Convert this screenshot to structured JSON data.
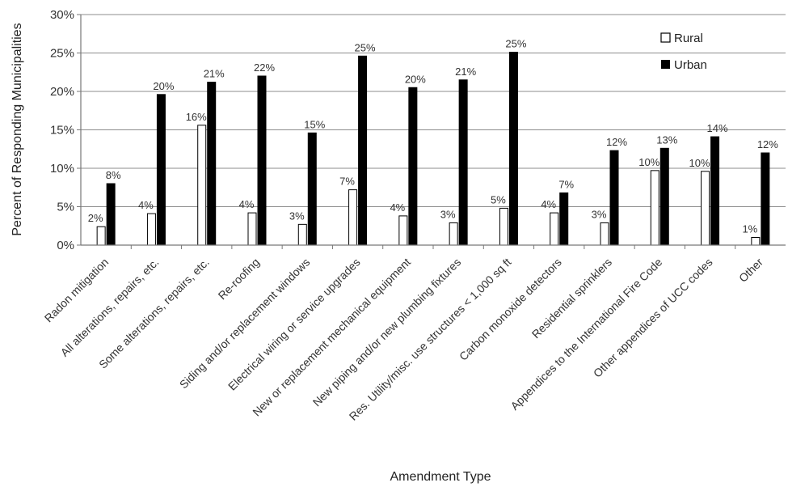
{
  "chart_data": {
    "type": "bar",
    "title": "",
    "xlabel": "Amendment Type",
    "ylabel": "Percent of Responding Municipalities",
    "ylim": [
      0,
      30
    ],
    "y_ticks": [
      "0%",
      "5%",
      "10%",
      "15%",
      "20%",
      "25%",
      "30%"
    ],
    "grid": true,
    "legend_position": "top-right",
    "categories": [
      "Radon mitigation",
      "All alterations, repairs, etc.",
      "Some alterations, repairs, etc.",
      "Re-roofing",
      "Siding and/or replacement windows",
      "Electrical wiring or service upgrades",
      "New or replacement mechanical equipment",
      "New piping and/or new plumbing fixtures",
      "Res. Utility/misc. use structures < 1,000 sq ft",
      "Carbon monoxide detectors",
      "Residential sprinklers",
      "Appendices to the International Fire Code",
      "Other appendices of UCC codes",
      "Other"
    ],
    "series": [
      {
        "name": "Rural",
        "color": "#ffffff",
        "values": [
          2.4,
          4.1,
          15.6,
          4.2,
          2.7,
          7.2,
          3.8,
          2.9,
          4.8,
          4.2,
          2.9,
          9.7,
          9.6,
          1.0
        ],
        "labels": [
          "2%",
          "4%",
          "16%",
          "4%",
          "3%",
          "7%",
          "4%",
          "3%",
          "5%",
          "4%",
          "3%",
          "10%",
          "10%",
          "1%"
        ]
      },
      {
        "name": "Urban",
        "color": "#000000",
        "values": [
          8.0,
          19.6,
          21.2,
          22.0,
          14.6,
          24.6,
          20.5,
          21.5,
          25.1,
          6.8,
          12.3,
          12.6,
          14.1,
          12.0
        ],
        "labels": [
          "8%",
          "20%",
          "21%",
          "22%",
          "15%",
          "25%",
          "20%",
          "21%",
          "25%",
          "7%",
          "12%",
          "13%",
          "14%",
          "12%"
        ]
      }
    ]
  }
}
